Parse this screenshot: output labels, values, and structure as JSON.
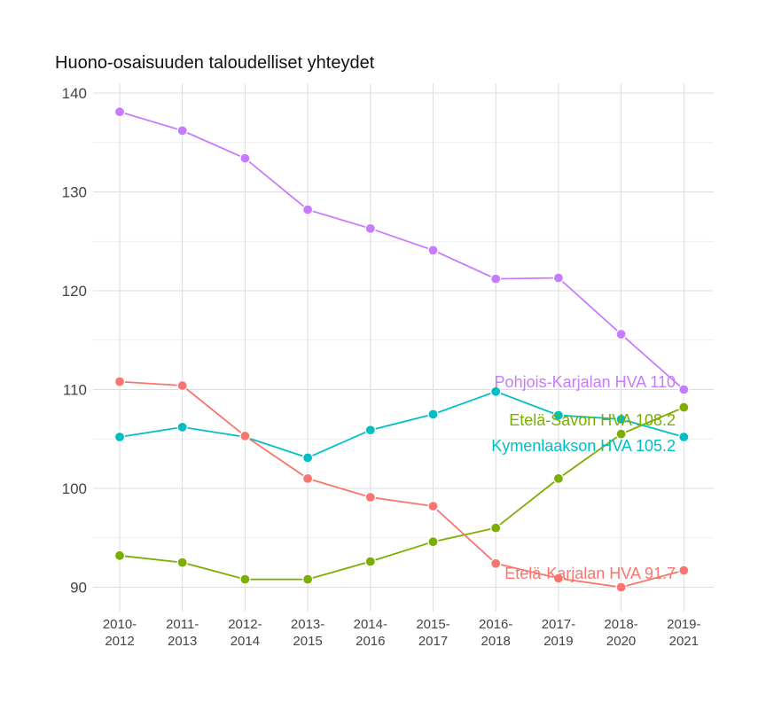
{
  "chart_data": {
    "type": "line",
    "title": "Huono-osaisuuden taloudelliset yhteydet",
    "xlabel": "",
    "ylabel": "",
    "ylim": [
      87,
      143
    ],
    "yticks": [
      90,
      100,
      110,
      120,
      130,
      140
    ],
    "grid": true,
    "x": [
      [
        "2010-",
        "2012"
      ],
      [
        "2011-",
        "2013"
      ],
      [
        "2012-",
        "2014"
      ],
      [
        "2013-",
        "2015"
      ],
      [
        "2014-",
        "2016"
      ],
      [
        "2015-",
        "2017"
      ],
      [
        "2016-",
        "2018"
      ],
      [
        "2017-",
        "2019"
      ],
      [
        "2018-",
        "2020"
      ],
      [
        "2019-",
        "2021"
      ]
    ],
    "series": [
      {
        "label": "Pohjois-Karjalan HVA 110",
        "color": "#c77cff",
        "values": [
          138.1,
          136.2,
          133.4,
          128.2,
          126.3,
          124.1,
          121.2,
          121.3,
          115.6,
          110.0
        ]
      },
      {
        "label": "Etelä-Savon HVA 108.2",
        "color": "#7cae00",
        "values": [
          93.2,
          92.5,
          90.8,
          90.8,
          92.6,
          94.6,
          96.0,
          101.0,
          105.5,
          108.2
        ]
      },
      {
        "label": "Kymenlaakson HVA 105.2",
        "color": "#00bfc4",
        "values": [
          105.2,
          106.2,
          105.2,
          103.1,
          105.9,
          107.5,
          109.8,
          107.4,
          107.0,
          105.2
        ]
      },
      {
        "label": "Etelä-Karjalan HVA 91.7",
        "color": "#f8766d",
        "values": [
          110.8,
          110.4,
          105.3,
          101.0,
          99.1,
          98.2,
          92.4,
          90.9,
          90.0,
          91.7
        ]
      }
    ]
  }
}
